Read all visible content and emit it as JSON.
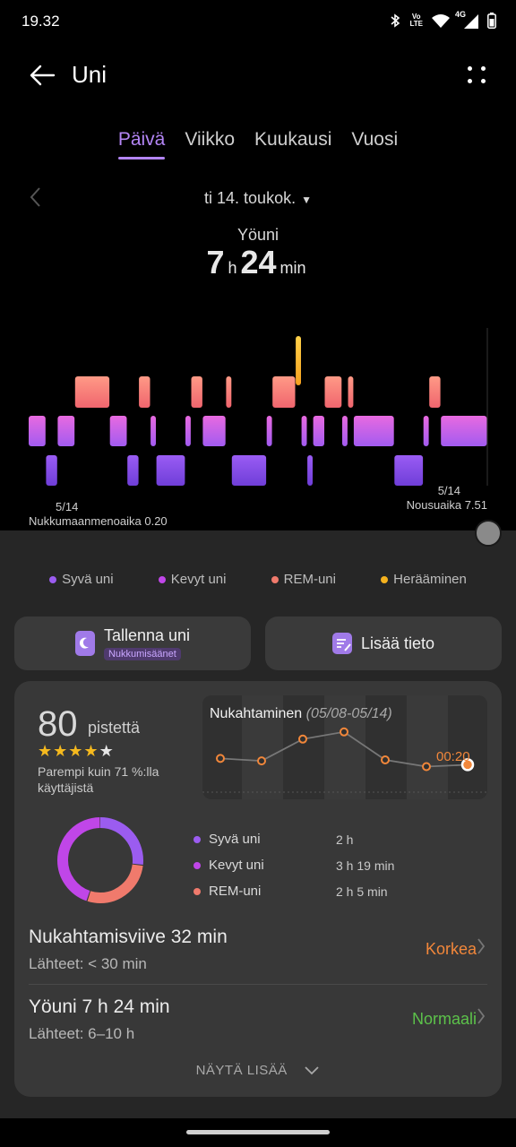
{
  "status_bar": {
    "time": "19.32",
    "icons": [
      "bluetooth-icon",
      "volte-icon",
      "wifi-icon",
      "signal-4g-icon",
      "battery-icon"
    ],
    "volte_label": "Vo\nLTE",
    "network_label": "4G"
  },
  "header": {
    "title": "Uni"
  },
  "tabs": [
    {
      "label": "Päivä",
      "active": true
    },
    {
      "label": "Viikko",
      "active": false
    },
    {
      "label": "Kuukausi",
      "active": false
    },
    {
      "label": "Vuosi",
      "active": false
    }
  ],
  "date": {
    "selected": "ti 14. toukok."
  },
  "summary": {
    "label": "Yöuni",
    "hours": "7",
    "hours_unit": "h",
    "minutes": "24",
    "minutes_unit": "min"
  },
  "hypnogram": {
    "start_date": "5/14",
    "start_label": "Nukkumaanmenoaika 0.20",
    "end_date": "5/14",
    "end_label": "Nousuaika 7.51",
    "segments": [
      {
        "stage": "light",
        "dur": 3
      },
      {
        "stage": "deep",
        "dur": 2
      },
      {
        "stage": "light",
        "dur": 3
      },
      {
        "stage": "rem",
        "dur": 6
      },
      {
        "stage": "light",
        "dur": 3
      },
      {
        "stage": "deep",
        "dur": 2
      },
      {
        "stage": "rem",
        "dur": 2
      },
      {
        "stage": "light",
        "dur": 1
      },
      {
        "stage": "deep",
        "dur": 5
      },
      {
        "stage": "light",
        "dur": 1
      },
      {
        "stage": "rem",
        "dur": 2
      },
      {
        "stage": "light",
        "dur": 4
      },
      {
        "stage": "rem",
        "dur": 1
      },
      {
        "stage": "deep",
        "dur": 6
      },
      {
        "stage": "light",
        "dur": 1
      },
      {
        "stage": "rem",
        "dur": 4
      },
      {
        "stage": "awake",
        "dur": 1
      },
      {
        "stage": "light",
        "dur": 1
      },
      {
        "stage": "deep",
        "dur": 1
      },
      {
        "stage": "light",
        "dur": 2
      },
      {
        "stage": "rem",
        "dur": 3
      },
      {
        "stage": "light",
        "dur": 1
      },
      {
        "stage": "rem",
        "dur": 1
      },
      {
        "stage": "light",
        "dur": 7
      },
      {
        "stage": "deep",
        "dur": 5
      },
      {
        "stage": "light",
        "dur": 1
      },
      {
        "stage": "rem",
        "dur": 2
      },
      {
        "stage": "light",
        "dur": 8
      }
    ]
  },
  "legend": [
    {
      "label": "Syvä uni",
      "color": "#9b5cf0"
    },
    {
      "label": "Kevyt uni",
      "color": "#c046e8"
    },
    {
      "label": "REM-uni",
      "color": "#f07a6c"
    },
    {
      "label": "Herääminen",
      "color": "#f5b21e"
    }
  ],
  "actions": {
    "save_label": "Tallenna uni",
    "save_sub": "Nukkumisäänet",
    "add_label": "Lisää tieto"
  },
  "score": {
    "value": "80",
    "unit": "pistettä",
    "stars": 4,
    "max_stars": 5,
    "comparison": "Parempi kuin 71 %:lla käyttäjistä"
  },
  "fall_asleep_chart": {
    "title": "Nukahtaminen",
    "range": "(05/08-05/14)",
    "last_value": "00:20",
    "values": [
      0.55,
      0.5,
      0.95,
      1.1,
      0.52,
      0.38,
      0.42
    ]
  },
  "breakdown": [
    {
      "label": "Syvä uni",
      "value": "2 h",
      "color": "#9b5cf0",
      "minutes": 120
    },
    {
      "label": "Kevyt uni",
      "value": "3 h 19 min",
      "color": "#c046e8",
      "minutes": 199
    },
    {
      "label": "REM-uni",
      "value": "2 h 5 min",
      "color": "#f07a6c",
      "minutes": 125
    }
  ],
  "metrics": [
    {
      "title": "Nukahtamisviive 32 min",
      "source": "Lähteet: < 30 min",
      "status": "Korkea",
      "status_color": "#f2873a"
    },
    {
      "title": "Yöuni  7 h 24 min",
      "source": "Lähteet: 6–10 h",
      "status": "Normaali",
      "status_color": "#5cc24a"
    }
  ],
  "show_more": "NÄYTÄ LISÄÄ"
}
